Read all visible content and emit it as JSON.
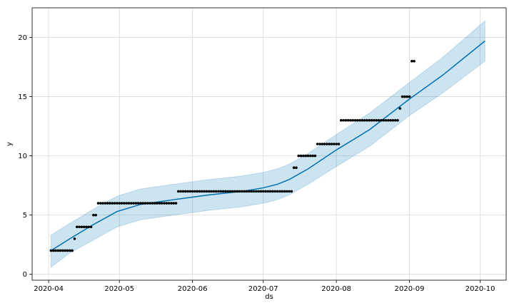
{
  "chart_data": {
    "type": "line",
    "xlabel": "ds",
    "ylabel": "y",
    "x_type": "date",
    "xlim": [
      "2020-03-25",
      "2020-10-12"
    ],
    "ylim": [
      -0.5,
      22.5
    ],
    "x_ticks": [
      "2020-04-01",
      "2020-05-01",
      "2020-06-01",
      "2020-07-01",
      "2020-08-01",
      "2020-09-01",
      "2020-10-01"
    ],
    "x_tick_labels": [
      "2020-04",
      "2020-05",
      "2020-06",
      "2020-07",
      "2020-08",
      "2020-09",
      "2020-10"
    ],
    "y_ticks": [
      0,
      5,
      10,
      15,
      20
    ],
    "y_tick_labels": [
      "0",
      "5",
      "10",
      "15",
      "20"
    ],
    "grid": true,
    "colors": {
      "trend": "#0072b2",
      "band": "#0072b2",
      "points": "#000000",
      "grid": "#d9d9d9"
    },
    "forecast": [
      {
        "x": "2020-04-02",
        "yhat": 2.0,
        "lower": 0.6,
        "upper": 3.3
      },
      {
        "x": "2020-04-10",
        "yhat": 3.0,
        "lower": 1.8,
        "upper": 4.3
      },
      {
        "x": "2020-04-20",
        "yhat": 4.2,
        "lower": 2.9,
        "upper": 5.5
      },
      {
        "x": "2020-04-30",
        "yhat": 5.3,
        "lower": 4.0,
        "upper": 6.6
      },
      {
        "x": "2020-05-10",
        "yhat": 5.9,
        "lower": 4.6,
        "upper": 7.2
      },
      {
        "x": "2020-05-24",
        "yhat": 6.3,
        "lower": 5.0,
        "upper": 7.6
      },
      {
        "x": "2020-06-08",
        "yhat": 6.7,
        "lower": 5.4,
        "upper": 8.0
      },
      {
        "x": "2020-06-22",
        "yhat": 7.0,
        "lower": 5.7,
        "upper": 8.3
      },
      {
        "x": "2020-07-01",
        "yhat": 7.3,
        "lower": 6.0,
        "upper": 8.6
      },
      {
        "x": "2020-07-07",
        "yhat": 7.6,
        "lower": 6.3,
        "upper": 8.9
      },
      {
        "x": "2020-07-12",
        "yhat": 8.0,
        "lower": 6.7,
        "upper": 9.3
      },
      {
        "x": "2020-07-20",
        "yhat": 8.9,
        "lower": 7.6,
        "upper": 10.2
      },
      {
        "x": "2020-08-01",
        "yhat": 10.5,
        "lower": 9.1,
        "upper": 11.8
      },
      {
        "x": "2020-08-15",
        "yhat": 12.2,
        "lower": 10.8,
        "upper": 13.6
      },
      {
        "x": "2020-09-01",
        "yhat": 14.8,
        "lower": 13.4,
        "upper": 16.2
      },
      {
        "x": "2020-09-15",
        "yhat": 16.8,
        "lower": 15.3,
        "upper": 18.3
      },
      {
        "x": "2020-10-03",
        "yhat": 19.7,
        "lower": 18.0,
        "upper": 21.4
      }
    ],
    "observed_segments": [
      {
        "from": "2020-04-02",
        "to": "2020-04-11",
        "y": 2
      },
      {
        "from": "2020-04-12",
        "to": "2020-04-12",
        "y": 3
      },
      {
        "from": "2020-04-13",
        "to": "2020-04-19",
        "y": 4
      },
      {
        "from": "2020-04-20",
        "to": "2020-04-21",
        "y": 5
      },
      {
        "from": "2020-04-22",
        "to": "2020-05-25",
        "y": 6
      },
      {
        "from": "2020-05-26",
        "to": "2020-07-13",
        "y": 7
      },
      {
        "from": "2020-07-14",
        "to": "2020-07-15",
        "y": 9
      },
      {
        "from": "2020-07-16",
        "to": "2020-07-23",
        "y": 10
      },
      {
        "from": "2020-07-24",
        "to": "2020-08-02",
        "y": 11
      },
      {
        "from": "2020-08-03",
        "to": "2020-08-27",
        "y": 13
      },
      {
        "from": "2020-08-28",
        "to": "2020-08-28",
        "y": 14
      },
      {
        "from": "2020-08-29",
        "to": "2020-09-01",
        "y": 15
      },
      {
        "from": "2020-09-02",
        "to": "2020-09-03",
        "y": 18
      }
    ]
  }
}
